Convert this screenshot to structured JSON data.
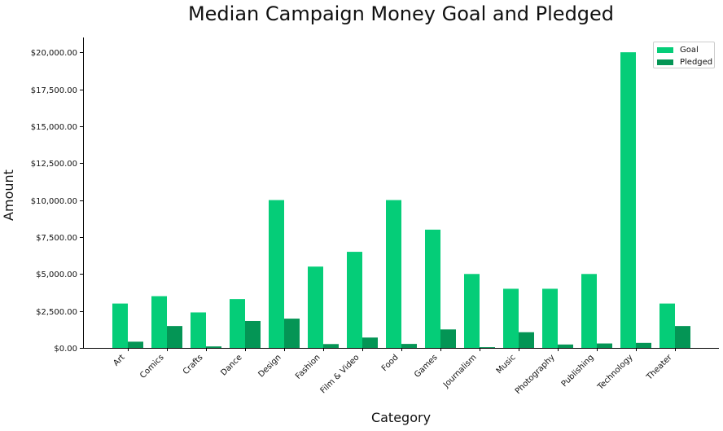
{
  "chart_data": {
    "type": "bar",
    "title": "Median Campaign Money Goal and Pledged",
    "xlabel": "Category",
    "ylabel": "Amount",
    "categories": [
      "Art",
      "Comics",
      "Crafts",
      "Dance",
      "Design",
      "Fashion",
      "Film & Video",
      "Food",
      "Games",
      "Journalism",
      "Music",
      "Photography",
      "Publishing",
      "Technology",
      "Theater"
    ],
    "series": [
      {
        "name": "Goal",
        "color": "#05cd78",
        "values": [
          3000,
          3500,
          2400,
          3300,
          10000,
          5500,
          6500,
          10000,
          8000,
          5000,
          4000,
          4000,
          5000,
          20000,
          3000
        ]
      },
      {
        "name": "Pledged",
        "color": "#049555",
        "values": [
          420,
          1480,
          100,
          1820,
          1980,
          260,
          700,
          270,
          1250,
          50,
          1060,
          230,
          300,
          340,
          1480
        ]
      }
    ],
    "ylim": [
      0,
      21000
    ],
    "yticks": [
      0,
      2500,
      5000,
      7500,
      10000,
      12500,
      15000,
      17500,
      20000
    ],
    "ytick_labels": [
      "$0.00",
      "$2,500.00",
      "$5,000.00",
      "$7,500.00",
      "$10,000.00",
      "$12,500.00",
      "$15,000.00",
      "$17,500.00",
      "$20,000.00"
    ],
    "grid": false,
    "legend_position": "top-right"
  }
}
